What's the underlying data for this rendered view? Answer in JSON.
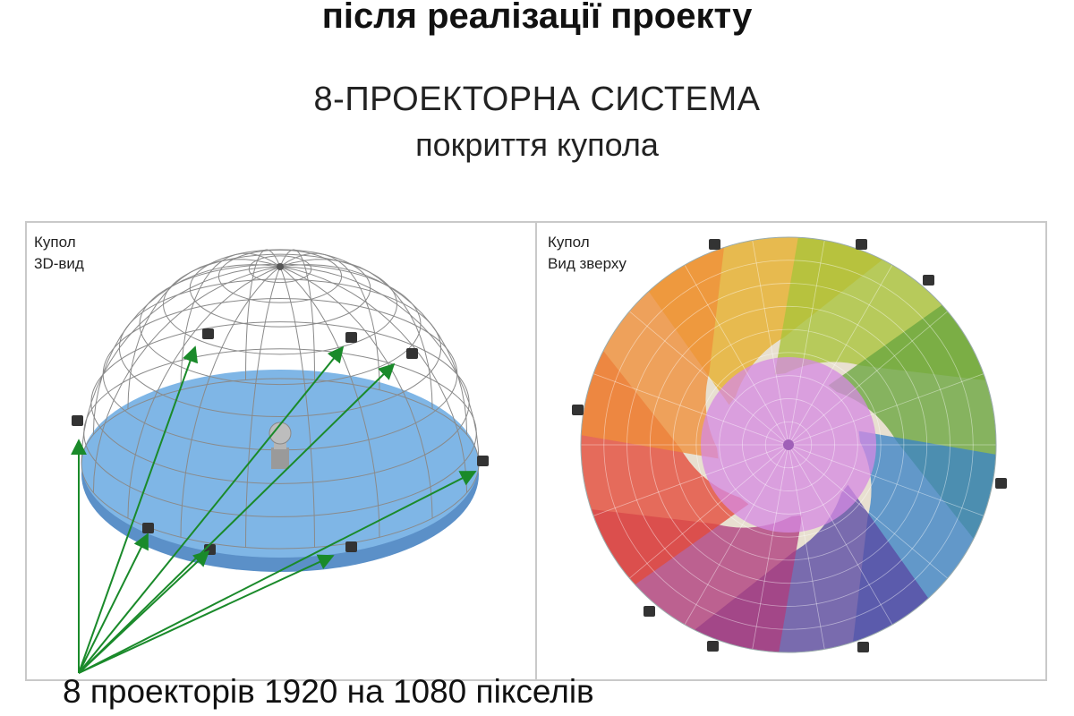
{
  "header": {
    "subtitle_top": "після реалізації проекту",
    "title": "8-ПРОЕКТОРНА СИСТЕМА",
    "subtitle": "покриття купола"
  },
  "panels": {
    "left": {
      "line1": "Купол",
      "line2": "3D-вид"
    },
    "right": {
      "line1": "Купол",
      "line2": "Вид зверху"
    }
  },
  "caption": "8 проекторів 1920 на 1080 пікселів",
  "colors": {
    "floor": "#7fb6e6",
    "floor_edge": "#5b90c8",
    "arrow": "#1a8a2a",
    "wire": "#8a8a8a",
    "projector": "#333333",
    "segments": [
      "#e7b02a",
      "#a9c43a",
      "#6aa73f",
      "#3c84c6",
      "#5a4aa4",
      "#b03d7d",
      "#e44a3a",
      "#ef8f3a"
    ],
    "center": "#d68ae3"
  },
  "icons": {
    "projector": "projector-icon",
    "arrow": "arrow-icon"
  }
}
